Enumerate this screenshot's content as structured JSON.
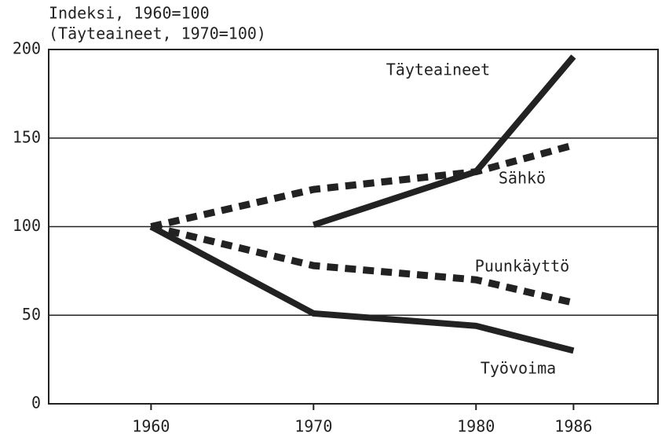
{
  "chart_data": {
    "type": "line",
    "title": "Indeksi, 1960=100",
    "subtitle": "(Täyteaineet, 1970=100)",
    "x": [
      1960,
      1970,
      1980,
      1986
    ],
    "series": [
      {
        "name": "Täyteaineet",
        "color": "#222222",
        "style": "solid",
        "values": [
          null,
          101,
          131,
          196
        ]
      },
      {
        "name": "Sähkö",
        "color": "#222222",
        "style": "dashed",
        "values": [
          100,
          121,
          131,
          146
        ]
      },
      {
        "name": "Puunkäyttö",
        "color": "#222222",
        "style": "dashed",
        "values": [
          100,
          78,
          70,
          57
        ]
      },
      {
        "name": "Työvoima",
        "color": "#222222",
        "style": "solid",
        "values": [
          100,
          51,
          44,
          30
        ]
      }
    ],
    "xlim": [
      1953.7,
      1991.2
    ],
    "xticks": [
      1960,
      1970,
      1980,
      1986
    ],
    "ylim": [
      0,
      200
    ],
    "yticks": [
      0,
      50,
      100,
      150,
      200
    ],
    "grid": true
  }
}
